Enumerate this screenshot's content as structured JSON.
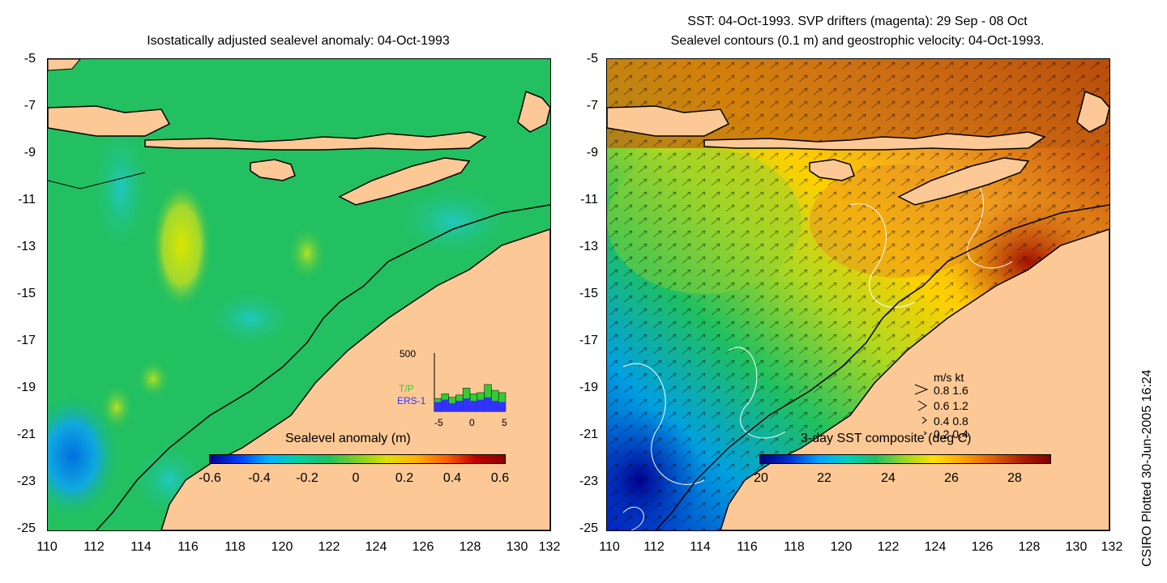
{
  "left_panel": {
    "title": "Isostatically adjusted sealevel anomaly: 04-Oct-1993",
    "colorbar_title": "Sealevel anomaly (m)",
    "colorbar_ticks": [
      "-0.6",
      "-0.4",
      "-0.2",
      "0",
      "0.2",
      "0.4",
      "0.6"
    ],
    "colorbar_colors": [
      "#00008b",
      "#0040ff",
      "#00b4ff",
      "#00d0a0",
      "#20c060",
      "#80d020",
      "#e0e000",
      "#ffb000",
      "#ff6000",
      "#c00000",
      "#8b0000"
    ],
    "histogram": {
      "y_top_label": "500",
      "series": [
        "T/P",
        "ERS-1"
      ],
      "series_colors": [
        "#33cc33",
        "#3333ff"
      ],
      "x_ticks": [
        "-5",
        "0",
        "5"
      ],
      "tp_counts": [
        110,
        150,
        120,
        140,
        200,
        150,
        160,
        230,
        180,
        160
      ],
      "ers_counts": [
        80,
        100,
        70,
        90,
        110,
        90,
        100,
        120,
        90,
        80
      ]
    }
  },
  "right_panel": {
    "title_line1": "SST: 04-Oct-1993. SVP drifters (magenta): 29 Sep - 08 Oct",
    "title_line2": "Sealevel contours (0.1 m) and geostrophic velocity: 04-Oct-1993.",
    "colorbar_title": "3-day SST composite (deg C)",
    "colorbar_ticks": [
      "20",
      "22",
      "24",
      "26",
      "28"
    ],
    "colorbar_colors": [
      "#000080",
      "#0030d0",
      "#00a0ff",
      "#00d0c0",
      "#20c060",
      "#a0d820",
      "#ffe000",
      "#ffa000",
      "#e06000",
      "#b02000",
      "#800000"
    ],
    "velocity_legend": {
      "header": "m/s  kt",
      "rows": [
        "0.8  1.6",
        "0.6  1.2",
        "0.4  0.8",
        "0.2  0.4"
      ]
    }
  },
  "axes": {
    "y_ticks": [
      "-5",
      "-7",
      "-9",
      "-11",
      "-13",
      "-15",
      "-17",
      "-19",
      "-21",
      "-23",
      "-25"
    ],
    "x_ticks": [
      "110",
      "112",
      "114",
      "116",
      "118",
      "120",
      "122",
      "124",
      "126",
      "128",
      "130",
      "132"
    ]
  },
  "credit": "CSIRO Plotted 30-Jun-2005 16:24",
  "colors": {
    "land": "#fcc896",
    "ocean_sla": "#22c060",
    "ocean_warm": "#e89020"
  }
}
